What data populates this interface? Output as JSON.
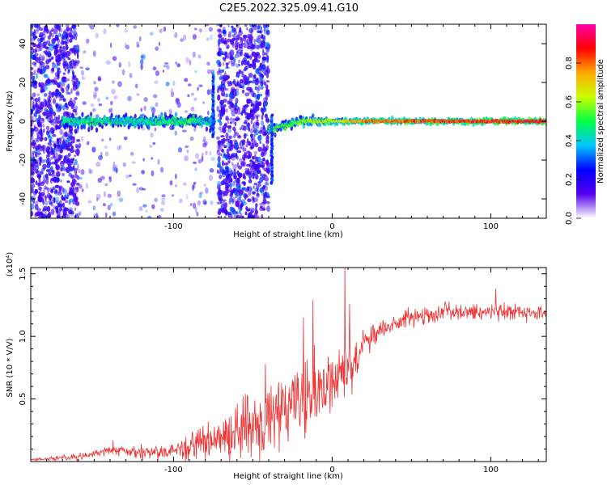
{
  "title": "C2E5.2022.325.09.41.G10",
  "chart_data": [
    {
      "type": "heatmap",
      "xlabel": "Height of straight line (km)",
      "ylabel": "Frequency (Hz)",
      "xlim": [
        -190,
        135
      ],
      "ylim": [
        -50,
        50
      ],
      "xticks": [
        -100,
        0,
        100
      ],
      "xtick_labels": [
        "-100",
        "0",
        "100"
      ],
      "yticks": [
        -40,
        -20,
        0,
        20,
        40
      ],
      "ytick_labels": [
        "-40",
        "-20",
        "0",
        "20",
        "40"
      ],
      "colorbar": {
        "label": "Normalized spectral amplitude",
        "range": [
          0.0,
          1.0
        ],
        "ticks": [
          0.0,
          0.2,
          0.4,
          0.6,
          0.8
        ],
        "tick_labels": [
          "0.0",
          "0.2",
          "0.4",
          "0.6",
          "0.8"
        ],
        "colormap": [
          "#ffffff",
          "#5500ee",
          "#0000ff",
          "#00c8ff",
          "#00ff44",
          "#ccff00",
          "#ffaa00",
          "#ff0000",
          "#ff00aa"
        ]
      },
      "line_profile": [
        {
          "x": -170,
          "freq": 0.0,
          "amp": 0.45
        },
        {
          "x": -150,
          "freq": 0.0,
          "amp": 0.45
        },
        {
          "x": -130,
          "freq": 0.0,
          "amp": 0.42
        },
        {
          "x": -110,
          "freq": 0.0,
          "amp": 0.45
        },
        {
          "x": -90,
          "freq": 0.0,
          "amp": 0.48
        },
        {
          "x": -75,
          "freq": 0.0,
          "amp": 0.4
        },
        {
          "x": -37,
          "freq": -4.0,
          "amp": 0.5
        },
        {
          "x": -20,
          "freq": 0.0,
          "amp": 0.55
        },
        {
          "x": 0,
          "freq": 0.0,
          "amp": 0.65
        },
        {
          "x": 20,
          "freq": 0.0,
          "amp": 0.78
        },
        {
          "x": 50,
          "freq": 0.0,
          "amp": 0.82
        },
        {
          "x": 80,
          "freq": 0.0,
          "amp": 0.85
        },
        {
          "x": 110,
          "freq": 0.0,
          "amp": 0.88
        },
        {
          "x": 135,
          "freq": 0.0,
          "amp": 0.9
        }
      ],
      "noise_bands": [
        {
          "x0": -190,
          "x1": -160,
          "density": "high"
        },
        {
          "x0": -160,
          "x1": -75,
          "density": "low"
        },
        {
          "x0": -72,
          "x1": -40,
          "density": "high"
        },
        {
          "x0": -40,
          "x1": 135,
          "density": "none"
        }
      ]
    },
    {
      "type": "line",
      "xlabel": "Height of straight line (km)",
      "ylabel": "SNR (10 * V/V)",
      "multiplier": "(x10⁴)",
      "xlim": [
        -190,
        135
      ],
      "ylim": [
        0,
        15500
      ],
      "xticks": [
        -100,
        0,
        100
      ],
      "xtick_labels": [
        "-100",
        "0",
        "100"
      ],
      "yticks": [
        5000,
        10000,
        15000
      ],
      "ytick_labels": [
        "0.5",
        "1.0",
        "1.5"
      ],
      "color": "#ee3333",
      "trend": [
        {
          "x": -190,
          "y": 150
        },
        {
          "x": -160,
          "y": 350
        },
        {
          "x": -140,
          "y": 900
        },
        {
          "x": -120,
          "y": 750
        },
        {
          "x": -100,
          "y": 850
        },
        {
          "x": -85,
          "y": 1300
        },
        {
          "x": -60,
          "y": 2600
        },
        {
          "x": -40,
          "y": 3400
        },
        {
          "x": -25,
          "y": 4400
        },
        {
          "x": -10,
          "y": 5200
        },
        {
          "x": 0,
          "y": 6300
        },
        {
          "x": 10,
          "y": 7400
        },
        {
          "x": 20,
          "y": 9500
        },
        {
          "x": 35,
          "y": 10800
        },
        {
          "x": 50,
          "y": 11500
        },
        {
          "x": 70,
          "y": 12000
        },
        {
          "x": 90,
          "y": 12000
        },
        {
          "x": 110,
          "y": 11900
        },
        {
          "x": 135,
          "y": 11800
        }
      ],
      "noise": [
        {
          "x": -190,
          "y": 120
        },
        {
          "x": -140,
          "y": 500
        },
        {
          "x": -100,
          "y": 900
        },
        {
          "x": -80,
          "y": 1800
        },
        {
          "x": -60,
          "y": 3200
        },
        {
          "x": -40,
          "y": 3800
        },
        {
          "x": -20,
          "y": 4500
        },
        {
          "x": 0,
          "y": 4000
        },
        {
          "x": 20,
          "y": 1800
        },
        {
          "x": 40,
          "y": 900
        },
        {
          "x": 80,
          "y": 900
        },
        {
          "x": 135,
          "y": 700
        }
      ],
      "peaks": [
        {
          "x": -138,
          "y": 1700
        },
        {
          "x": -88,
          "y": 2400
        },
        {
          "x": -42,
          "y": 7800
        },
        {
          "x": -18,
          "y": 11500
        },
        {
          "x": -12,
          "y": 12900
        },
        {
          "x": 8,
          "y": 15600
        },
        {
          "x": 11,
          "y": 12600
        },
        {
          "x": 103,
          "y": 13800
        }
      ]
    }
  ]
}
